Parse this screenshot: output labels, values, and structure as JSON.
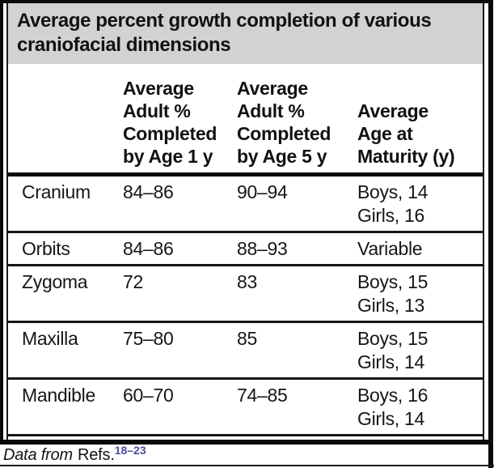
{
  "title": "Average percent growth completion of various\ncraniofacial dimensions",
  "colors": {
    "title_band_bg": "#d2d2d2",
    "text": "#161616",
    "border": "#0a0a0a",
    "reference_link": "#4c4c9e"
  },
  "table": {
    "headers": [
      "",
      "Average\nAdult %\nCompleted\nby Age 1 y",
      "Average\nAdult %\nCompleted\nby Age 5 y",
      "Average\nAge at\nMaturity (y)"
    ],
    "rows": [
      {
        "dimension": "Cranium",
        "age1": "84–86",
        "age5": "90–94",
        "maturity": "Boys, 14\nGirls, 16"
      },
      {
        "dimension": "Orbits",
        "age1": "84–86",
        "age5": "88–93",
        "maturity": "Variable"
      },
      {
        "dimension": "Zygoma",
        "age1": "72",
        "age5": "83",
        "maturity": "Boys, 15\nGirls, 13"
      },
      {
        "dimension": "Maxilla",
        "age1": "75–80",
        "age5": "85",
        "maturity": "Boys, 15\nGirls, 14"
      },
      {
        "dimension": "Mandible",
        "age1": "60–70",
        "age5": "74–85",
        "maturity": "Boys, 16\nGirls, 14"
      }
    ]
  },
  "footnote": {
    "prefix": "Data from",
    "refs_label": "Refs.",
    "refs_range": "18–23"
  }
}
